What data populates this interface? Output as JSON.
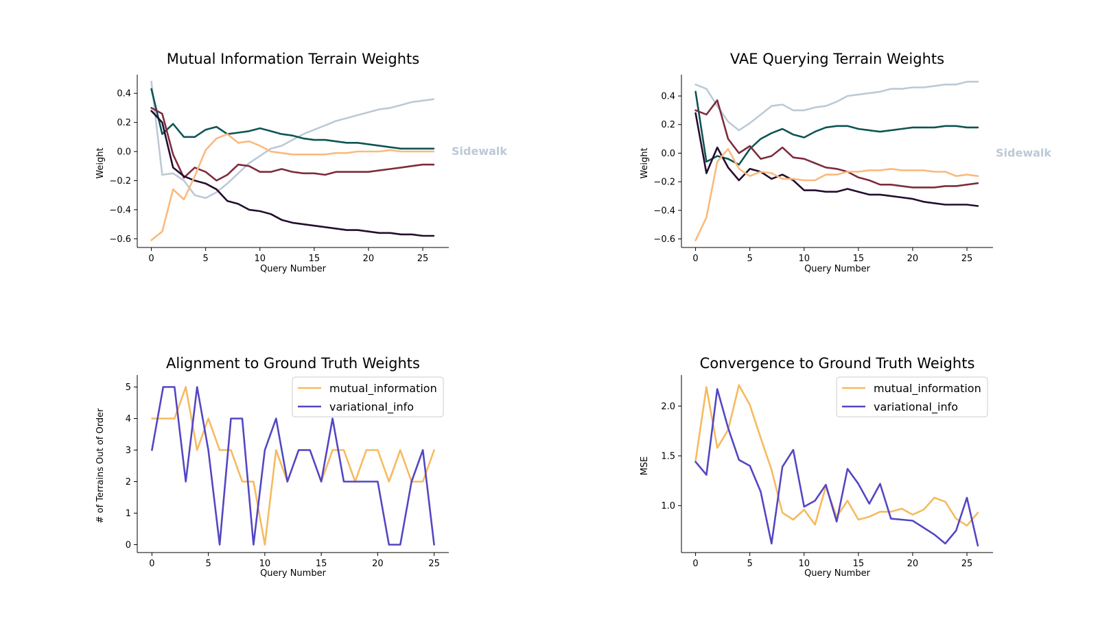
{
  "colors": {
    "terrain": [
      "#bcc9d6",
      "#0d5452",
      "#7e2b3c",
      "#230d2e",
      "#fbb97d"
    ],
    "mutual_information": "#f6ba5e",
    "variational_info": "#5346c4",
    "legend_border": "#cccccc"
  },
  "chart_data": [
    {
      "type": "line",
      "title": "Mutual Information Terrain Weights",
      "xlabel": "Query Number",
      "ylabel": "Weight",
      "xlim": [
        -1.3,
        27.4
      ],
      "ylim": [
        -0.66,
        0.5
      ],
      "xticks": [
        0,
        5,
        10,
        15,
        20,
        25
      ],
      "yticks": [
        -0.6,
        -0.4,
        -0.2,
        0.0,
        0.2,
        0.4
      ],
      "ytick_labels": [
        "−0.6",
        "−0.4",
        "−0.2",
        "0.0",
        "0.2",
        "0.4"
      ],
      "legend": "none",
      "annotation": "Sidewalk",
      "annotation_y": 0.0,
      "x": [
        0,
        1,
        2,
        3,
        4,
        5,
        6,
        7,
        8,
        9,
        10,
        11,
        12,
        13,
        14,
        15,
        16,
        17,
        18,
        19,
        20,
        21,
        22,
        23,
        24,
        25,
        26
      ],
      "series": [
        {
          "values": [
            0.48,
            -0.16,
            -0.15,
            -0.2,
            -0.3,
            -0.32,
            -0.28,
            -0.22,
            -0.15,
            -0.08,
            -0.03,
            0.02,
            0.04,
            0.08,
            0.12,
            0.15,
            0.18,
            0.21,
            0.23,
            0.25,
            0.27,
            0.29,
            0.3,
            0.32,
            0.34,
            0.35,
            0.36
          ]
        },
        {
          "values": [
            0.43,
            0.12,
            0.19,
            0.1,
            0.1,
            0.15,
            0.17,
            0.12,
            0.13,
            0.14,
            0.16,
            0.14,
            0.12,
            0.11,
            0.09,
            0.08,
            0.08,
            0.07,
            0.06,
            0.06,
            0.05,
            0.04,
            0.03,
            0.02,
            0.02,
            0.02,
            0.02
          ]
        },
        {
          "values": [
            0.3,
            0.26,
            -0.02,
            -0.18,
            -0.11,
            -0.14,
            -0.2,
            -0.16,
            -0.09,
            -0.1,
            -0.14,
            -0.14,
            -0.12,
            -0.14,
            -0.15,
            -0.15,
            -0.16,
            -0.14,
            -0.14,
            -0.14,
            -0.14,
            -0.13,
            -0.12,
            -0.11,
            -0.1,
            -0.09,
            -0.09
          ]
        },
        {
          "values": [
            0.28,
            0.2,
            -0.11,
            -0.17,
            -0.2,
            -0.22,
            -0.26,
            -0.34,
            -0.36,
            -0.4,
            -0.41,
            -0.43,
            -0.47,
            -0.49,
            -0.5,
            -0.51,
            -0.52,
            -0.53,
            -0.54,
            -0.54,
            -0.55,
            -0.56,
            -0.56,
            -0.57,
            -0.57,
            -0.58,
            -0.58
          ]
        },
        {
          "values": [
            -0.61,
            -0.55,
            -0.26,
            -0.33,
            -0.17,
            0.01,
            0.09,
            0.12,
            0.06,
            0.07,
            0.04,
            0.0,
            -0.01,
            -0.02,
            -0.02,
            -0.02,
            -0.02,
            -0.01,
            -0.01,
            0.0,
            0.0,
            0.0,
            0.01,
            0.0,
            0.0,
            0.0,
            0.0
          ]
        }
      ]
    },
    {
      "type": "line",
      "title": "VAE Querying Terrain Weights",
      "xlabel": "Query Number",
      "ylabel": "Weight",
      "xlim": [
        -1.3,
        27.4
      ],
      "ylim": [
        -0.66,
        0.52
      ],
      "xticks": [
        0,
        5,
        10,
        15,
        20,
        25
      ],
      "yticks": [
        -0.6,
        -0.4,
        -0.2,
        0.0,
        0.2,
        0.4
      ],
      "ytick_labels": [
        "−0.6",
        "−0.4",
        "−0.2",
        "0.0",
        "0.2",
        "0.4"
      ],
      "legend": "none",
      "annotation": "Sidewalk",
      "annotation_y": 0.0,
      "x": [
        0,
        1,
        2,
        3,
        4,
        5,
        6,
        7,
        8,
        9,
        10,
        11,
        12,
        13,
        14,
        15,
        16,
        17,
        18,
        19,
        20,
        21,
        22,
        23,
        24,
        25,
        26
      ],
      "series": [
        {
          "values": [
            0.48,
            0.45,
            0.33,
            0.22,
            0.16,
            0.21,
            0.27,
            0.33,
            0.34,
            0.3,
            0.3,
            0.32,
            0.33,
            0.36,
            0.4,
            0.41,
            0.42,
            0.43,
            0.45,
            0.45,
            0.46,
            0.46,
            0.47,
            0.48,
            0.48,
            0.5,
            0.5
          ]
        },
        {
          "values": [
            0.43,
            -0.06,
            -0.02,
            -0.04,
            -0.08,
            0.03,
            0.1,
            0.14,
            0.17,
            0.13,
            0.11,
            0.15,
            0.18,
            0.19,
            0.19,
            0.17,
            0.16,
            0.15,
            0.16,
            0.17,
            0.18,
            0.18,
            0.18,
            0.19,
            0.19,
            0.18,
            0.18
          ]
        },
        {
          "values": [
            0.3,
            0.27,
            0.37,
            0.1,
            0.0,
            0.05,
            -0.04,
            -0.02,
            0.04,
            -0.03,
            -0.04,
            -0.07,
            -0.1,
            -0.11,
            -0.13,
            -0.17,
            -0.19,
            -0.22,
            -0.22,
            -0.23,
            -0.24,
            -0.24,
            -0.24,
            -0.23,
            -0.23,
            -0.22,
            -0.21
          ]
        },
        {
          "values": [
            0.28,
            -0.14,
            0.04,
            -0.1,
            -0.19,
            -0.11,
            -0.13,
            -0.18,
            -0.15,
            -0.19,
            -0.26,
            -0.26,
            -0.27,
            -0.27,
            -0.25,
            -0.27,
            -0.29,
            -0.29,
            -0.3,
            -0.31,
            -0.32,
            -0.34,
            -0.35,
            -0.36,
            -0.36,
            -0.36,
            -0.37
          ]
        },
        {
          "values": [
            -0.61,
            -0.45,
            -0.06,
            0.03,
            -0.11,
            -0.16,
            -0.13,
            -0.14,
            -0.18,
            -0.18,
            -0.19,
            -0.19,
            -0.15,
            -0.15,
            -0.13,
            -0.13,
            -0.12,
            -0.12,
            -0.11,
            -0.12,
            -0.12,
            -0.12,
            -0.13,
            -0.13,
            -0.16,
            -0.15,
            -0.16
          ]
        }
      ]
    },
    {
      "type": "line",
      "title": "Alignment to Ground Truth Weights",
      "xlabel": "Query Number",
      "ylabel": "# of Terrains Out of Order",
      "xlim": [
        -1.3,
        26.3
      ],
      "ylim": [
        -0.25,
        5.25
      ],
      "xticks": [
        0,
        5,
        10,
        15,
        20,
        25
      ],
      "yticks": [
        0,
        1,
        2,
        3,
        4,
        5
      ],
      "ytick_labels": [
        "0",
        "1",
        "2",
        "3",
        "4",
        "5"
      ],
      "legend": "top-right",
      "x": [
        0,
        1,
        2,
        3,
        4,
        5,
        6,
        7,
        8,
        9,
        10,
        11,
        12,
        13,
        14,
        15,
        16,
        17,
        18,
        19,
        20,
        21,
        22,
        23,
        24,
        25
      ],
      "series": [
        {
          "name": "mutual_information",
          "values": [
            4,
            4,
            4,
            5,
            3,
            4,
            3,
            3,
            2,
            2,
            0,
            3,
            2,
            3,
            3,
            2,
            3,
            3,
            2,
            3,
            3,
            2,
            3,
            2,
            2,
            3
          ]
        },
        {
          "name": "variational_info",
          "values": [
            3,
            5,
            5,
            2,
            5,
            3,
            0,
            4,
            4,
            0,
            3,
            4,
            2,
            3,
            3,
            2,
            4,
            2,
            2,
            2,
            2,
            0,
            0,
            2,
            3,
            0
          ]
        }
      ]
    },
    {
      "type": "line",
      "title": "Convergence to Ground Truth Weights",
      "xlabel": "Query Number",
      "ylabel": "MSE",
      "xlim": [
        -1.3,
        27.4
      ],
      "ylim": [
        0.53,
        2.27
      ],
      "xticks": [
        0,
        5,
        10,
        15,
        20,
        25
      ],
      "yticks": [
        1.0,
        1.5,
        2.0
      ],
      "ytick_labels": [
        "1.0",
        "1.5",
        "2.0"
      ],
      "legend": "top-right",
      "x": [
        0,
        1,
        2,
        3,
        4,
        5,
        6,
        7,
        8,
        9,
        10,
        11,
        12,
        13,
        14,
        15,
        16,
        17,
        18,
        19,
        20,
        21,
        22,
        23,
        24,
        25,
        26
      ],
      "series": [
        {
          "name": "mutual_information",
          "values": [
            1.45,
            2.19,
            1.58,
            1.76,
            2.21,
            2.01,
            1.68,
            1.36,
            0.93,
            0.86,
            0.96,
            0.81,
            1.19,
            0.89,
            1.05,
            0.86,
            0.89,
            0.94,
            0.94,
            0.97,
            0.91,
            0.96,
            1.08,
            1.04,
            0.87,
            0.8,
            0.93
          ]
        },
        {
          "name": "variational_info",
          "values": [
            1.44,
            1.31,
            2.17,
            1.78,
            1.46,
            1.4,
            1.14,
            0.62,
            1.39,
            1.56,
            0.99,
            1.05,
            1.21,
            0.84,
            1.37,
            1.22,
            1.02,
            1.22,
            0.87,
            0.86,
            0.85,
            0.78,
            0.71,
            0.62,
            0.75,
            1.08,
            0.6
          ]
        }
      ]
    }
  ]
}
